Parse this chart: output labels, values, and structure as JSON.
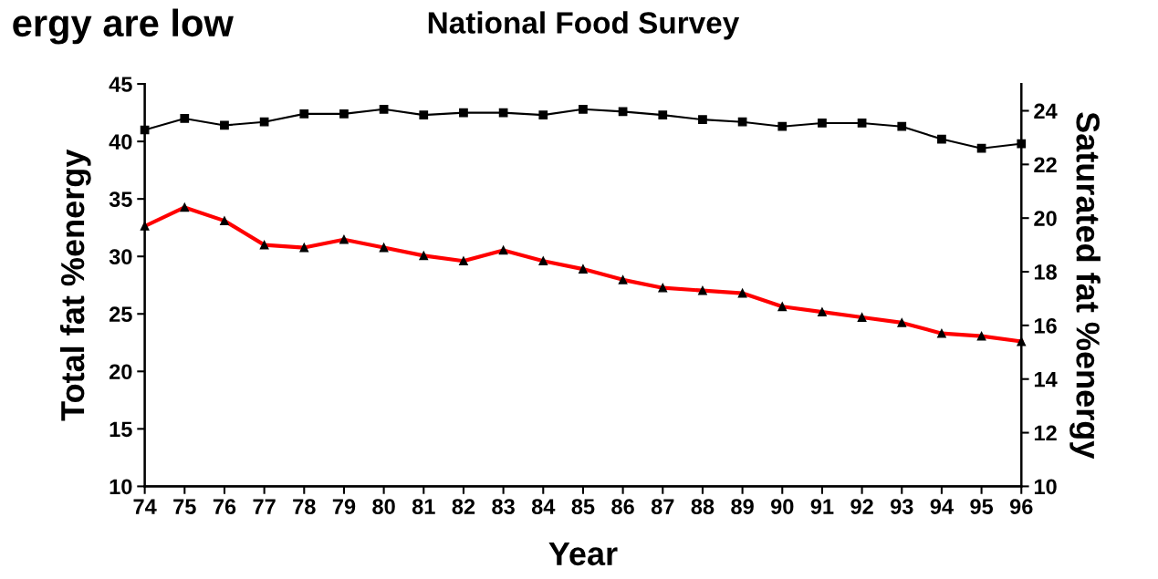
{
  "chart_data": {
    "type": "line",
    "title": "National Food Survey",
    "annotations": [
      "ergy are low"
    ],
    "xlabel": "Year",
    "ylabel": "Total fat %energy",
    "y2label": "Saturated fat %energy",
    "x": [
      74,
      75,
      76,
      77,
      78,
      79,
      80,
      81,
      82,
      83,
      84,
      85,
      86,
      87,
      88,
      89,
      90,
      91,
      92,
      93,
      94,
      95,
      96
    ],
    "xlim": [
      74,
      96
    ],
    "xticks": [
      74,
      75,
      76,
      77,
      78,
      79,
      80,
      81,
      82,
      83,
      84,
      85,
      86,
      87,
      88,
      89,
      90,
      91,
      92,
      93,
      94,
      95,
      96
    ],
    "ylim": [
      10,
      45
    ],
    "yticks": [
      10,
      15,
      20,
      25,
      30,
      35,
      40,
      45
    ],
    "y2lim": [
      10,
      25
    ],
    "y2ticks": [
      10,
      12,
      14,
      16,
      18,
      20,
      22,
      24
    ],
    "grid": false,
    "legend": false,
    "series": [
      {
        "color": "#000000",
        "marker": "square",
        "values": [
          41.0,
          42.0,
          41.4,
          41.7,
          42.4,
          42.4,
          42.8,
          42.3,
          42.5,
          42.5,
          42.3,
          42.8,
          42.6,
          42.3,
          41.9,
          41.7,
          41.3,
          41.6,
          41.6,
          41.3,
          40.2,
          39.4,
          39.8
        ]
      },
      {
        "color": "#ff0000",
        "marker": "triangle",
        "axis": "y2",
        "values": [
          19.7,
          20.4,
          19.9,
          19.0,
          18.9,
          19.2,
          18.9,
          18.6,
          18.4,
          18.8,
          18.4,
          18.1,
          17.7,
          17.4,
          17.3,
          17.2,
          16.7,
          16.5,
          16.3,
          16.1,
          15.7,
          15.6,
          15.4
        ]
      }
    ]
  }
}
